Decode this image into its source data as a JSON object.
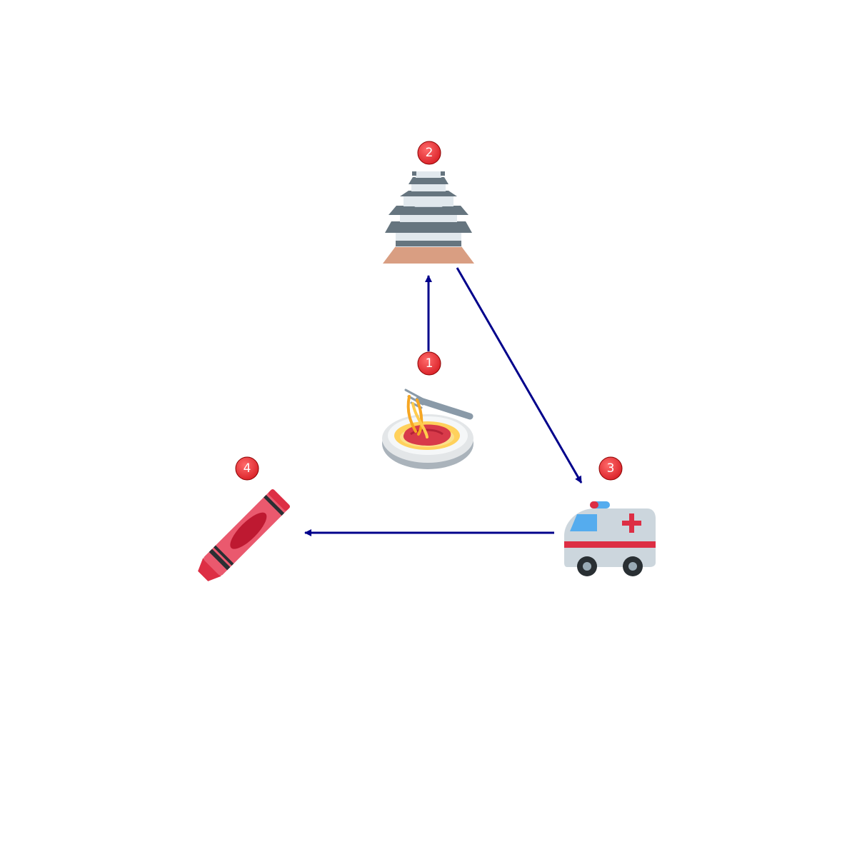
{
  "diagram": {
    "nodes": [
      {
        "id": "n1",
        "badge": "1",
        "icon": "spaghetti-icon"
      },
      {
        "id": "n2",
        "badge": "2",
        "icon": "japanese-castle-icon"
      },
      {
        "id": "n3",
        "badge": "3",
        "icon": "ambulance-icon"
      },
      {
        "id": "n4",
        "badge": "4",
        "icon": "crayon-icon"
      }
    ],
    "edges": [
      {
        "from": "n1",
        "to": "n2"
      },
      {
        "from": "n2",
        "to": "n3"
      },
      {
        "from": "n3",
        "to": "n4"
      }
    ],
    "colors": {
      "arrow": "#00008b",
      "badge_fill": "#e8333a",
      "badge_text": "#ffffff"
    }
  }
}
